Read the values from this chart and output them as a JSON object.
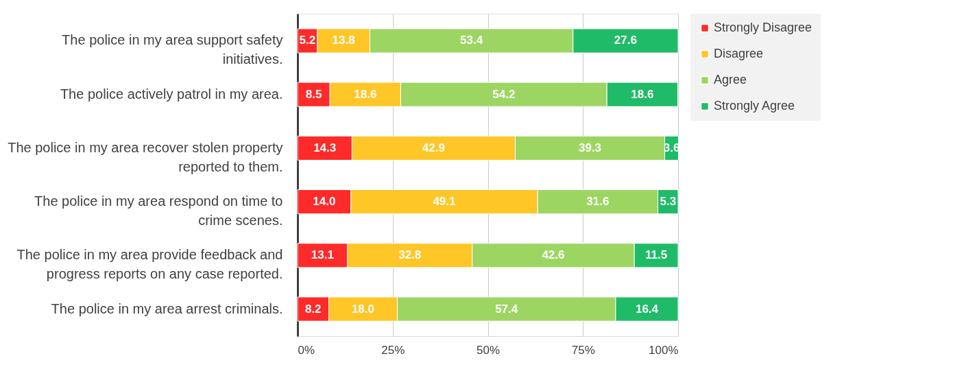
{
  "chart_data": {
    "type": "bar",
    "orientation": "horizontal",
    "stacked": true,
    "grid": "x",
    "legend": "right",
    "categories": [
      "The police in my area support safety initiatives.",
      "The police actively patrol in my area.",
      "The police in my area recover stolen property reported to them.",
      "The police in my area respond on time to crime scenes.",
      "The police in my area provide feedback and progress reports on any case reported.",
      "The police in my area arrest criminals."
    ],
    "series": [
      {
        "name": "Strongly Disagree",
        "color": "#ff2a2a",
        "values": [
          5.2,
          8.5,
          14.3,
          14.0,
          13.1,
          8.2
        ],
        "value_labels": [
          "5.2",
          "8.5",
          "14.3",
          "14.0",
          "13.1",
          "8.2"
        ]
      },
      {
        "name": "Disagree",
        "color": "#ffc628",
        "values": [
          13.8,
          18.6,
          42.9,
          49.1,
          32.8,
          18.0
        ],
        "value_labels": [
          "13.8",
          "18.6",
          "42.9",
          "49.1",
          "32.8",
          "18.0"
        ]
      },
      {
        "name": "Agree",
        "color": "#9dd562",
        "values": [
          53.4,
          54.2,
          39.3,
          31.6,
          42.6,
          57.4
        ],
        "value_labels": [
          "53.4",
          "54.2",
          "39.3",
          "31.6",
          "42.6",
          "57.4"
        ]
      },
      {
        "name": "Strongly Agree",
        "color": "#20bb68",
        "values": [
          27.6,
          18.6,
          3.6,
          5.3,
          11.5,
          16.4
        ],
        "value_labels": [
          "27.6",
          "18.6",
          "3.6",
          "5.3",
          "11.5",
          "16.4"
        ]
      }
    ],
    "xlim": [
      0,
      100
    ],
    "xticks": [
      {
        "value": 0,
        "label": "0%"
      },
      {
        "value": 25,
        "label": "25%"
      },
      {
        "value": 50,
        "label": "50%"
      },
      {
        "value": 75,
        "label": "75%"
      },
      {
        "value": 100,
        "label": "100%"
      }
    ]
  }
}
